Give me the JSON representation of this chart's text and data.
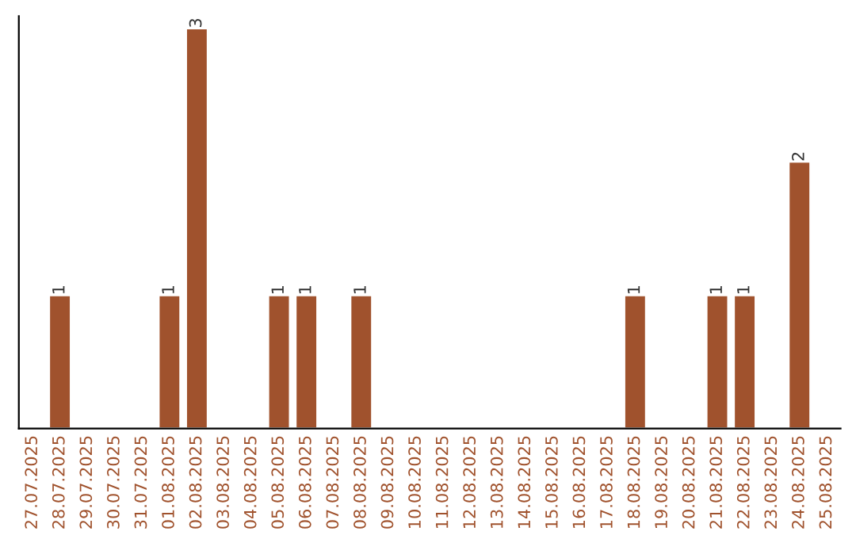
{
  "chart_data": {
    "type": "bar",
    "color": "#a0522d",
    "categories": [
      "27.07.2025",
      "28.07.2025",
      "29.07.2025",
      "30.07.2025",
      "31.07.2025",
      "01.08.2025",
      "02.08.2025",
      "03.08.2025",
      "04.08.2025",
      "05.08.2025",
      "06.08.2025",
      "07.08.2025",
      "08.08.2025",
      "09.08.2025",
      "10.08.2025",
      "11.08.2025",
      "12.08.2025",
      "13.08.2025",
      "14.08.2025",
      "15.08.2025",
      "16.08.2025",
      "17.08.2025",
      "18.08.2025",
      "19.08.2025",
      "20.08.2025",
      "21.08.2025",
      "22.08.2025",
      "23.08.2025",
      "24.08.2025",
      "25.08.2025"
    ],
    "values": [
      null,
      1,
      null,
      null,
      null,
      1,
      3,
      null,
      null,
      1,
      1,
      null,
      1,
      null,
      null,
      null,
      null,
      null,
      null,
      null,
      null,
      null,
      1,
      null,
      null,
      1,
      1,
      null,
      2,
      null
    ],
    "value_labels": [
      null,
      "1",
      null,
      null,
      null,
      "1",
      "3",
      null,
      null,
      "1",
      "1",
      null,
      "1",
      null,
      null,
      null,
      null,
      null,
      null,
      null,
      null,
      null,
      "1",
      null,
      null,
      "1",
      "1",
      null,
      "2",
      null
    ],
    "grid": false,
    "legend": false,
    "tick_labels": "x"
  }
}
